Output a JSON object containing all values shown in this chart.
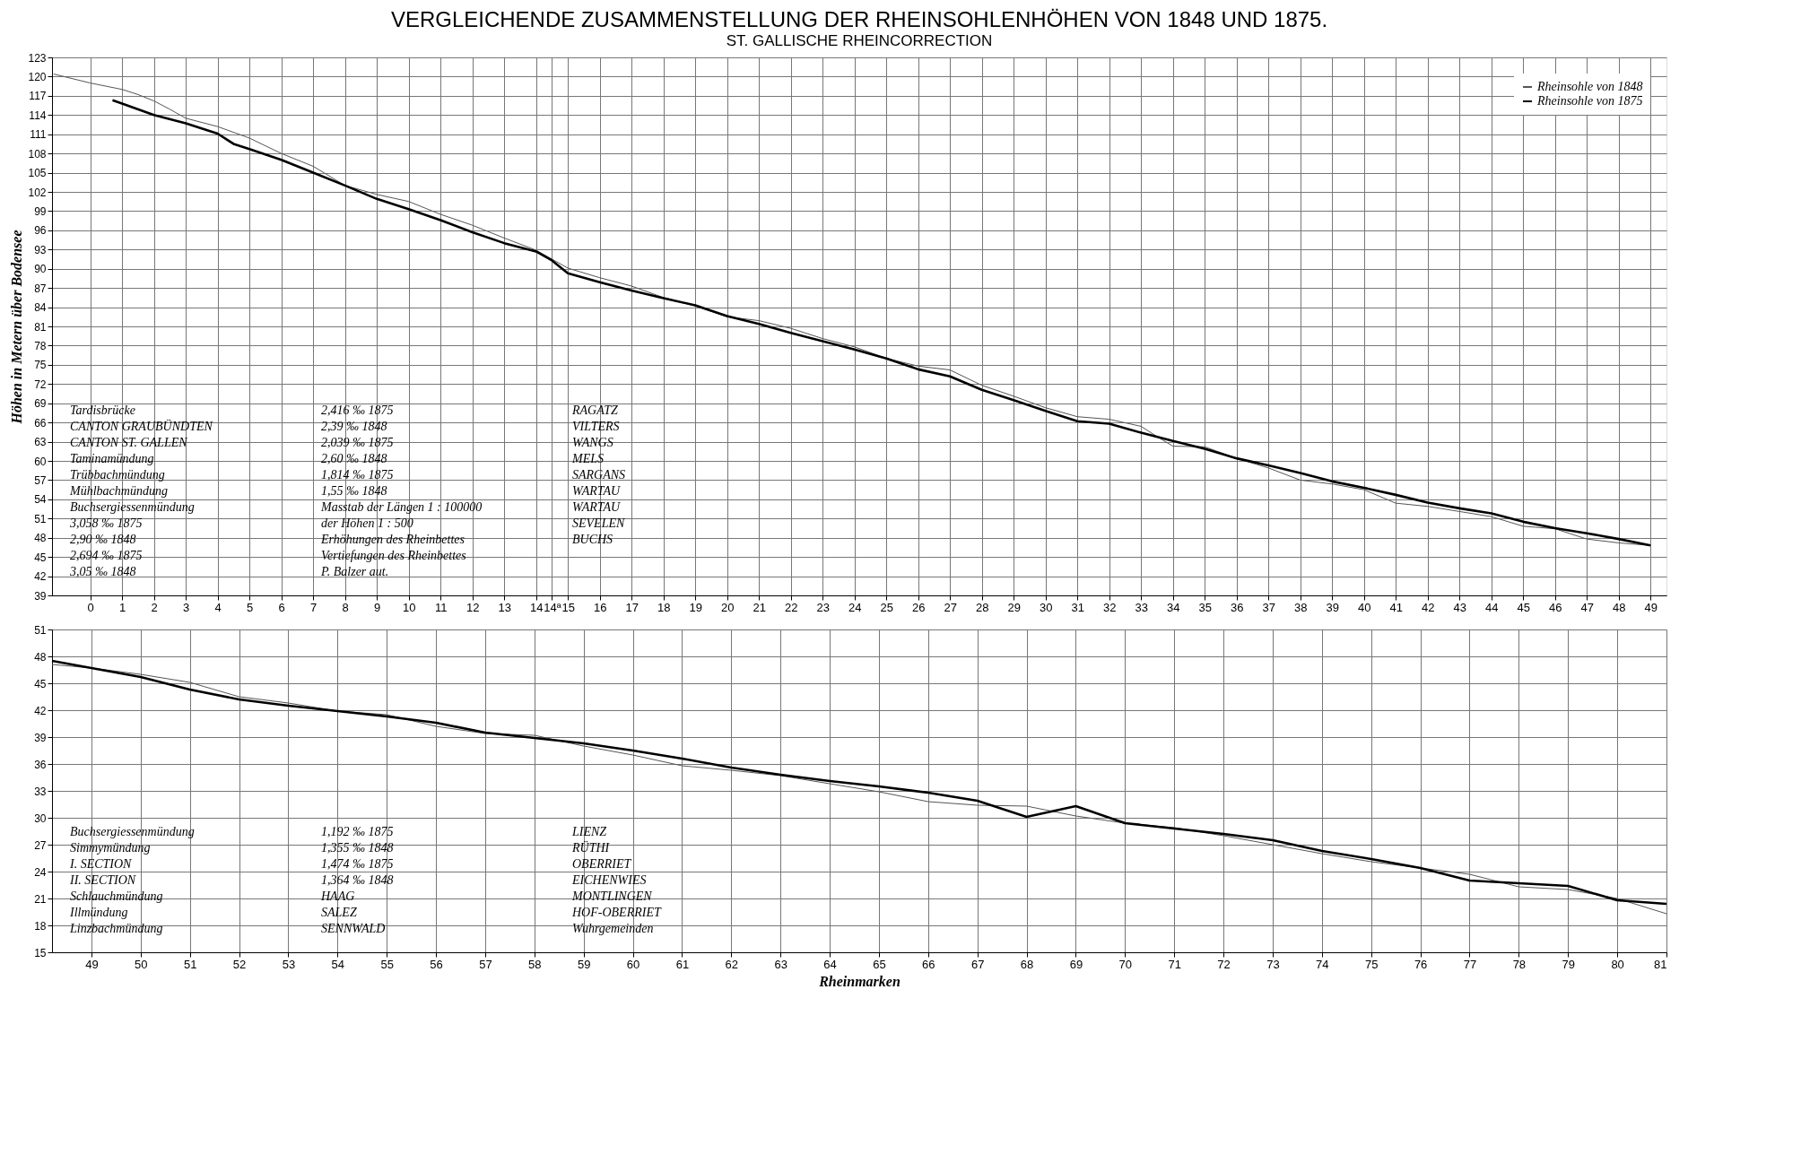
{
  "chart_data": [
    {
      "type": "line",
      "title": "VERGLEICHENDE ZUSAMMENSTELLUNG DER RHEINSOHLENHÖHEN VON 1848 UND 1875.",
      "subtitle": "ST. GALLISCHE RHEINCORRECTION",
      "ylabel": "Höhen in Metern über Bodensee",
      "xlim": [
        -1.2,
        49.5
      ],
      "ylim": [
        39,
        123
      ],
      "xticks": [
        0,
        1,
        2,
        3,
        4,
        5,
        6,
        7,
        8,
        9,
        10,
        11,
        12,
        13,
        14,
        {
          "value": 14.5,
          "label": "14ª"
        },
        15,
        16,
        17,
        18,
        19,
        20,
        21,
        22,
        23,
        24,
        25,
        26,
        27,
        28,
        29,
        30,
        31,
        32,
        33,
        34,
        35,
        36,
        37,
        38,
        39,
        40,
        41,
        42,
        43,
        44,
        45,
        46,
        47,
        48,
        49
      ],
      "yticks": [
        39,
        42,
        45,
        48,
        51,
        54,
        57,
        60,
        63,
        66,
        69,
        72,
        75,
        78,
        81,
        84,
        87,
        90,
        93,
        96,
        99,
        102,
        105,
        108,
        111,
        114,
        117,
        120,
        123
      ],
      "grid": true,
      "legend": "top right",
      "marker": "none",
      "line_style": "solid",
      "series": [
        {
          "name": "Rheinsohle von 1848",
          "color": "#555555",
          "x": [
            -1.15,
            0,
            1,
            1.5,
            2,
            2.5,
            3,
            4,
            5,
            6,
            7,
            8,
            9,
            10,
            11,
            12,
            13,
            14,
            14.5,
            15,
            16,
            17,
            18,
            19,
            20,
            21,
            22,
            23,
            24,
            25,
            26,
            27,
            28,
            29,
            30,
            31,
            32,
            33,
            33.5,
            34,
            35,
            36,
            37,
            38,
            39,
            40,
            41,
            42,
            43,
            44,
            45,
            46,
            47,
            48,
            49
          ],
          "values": [
            120.4,
            119.0,
            118.0,
            117.2,
            116.2,
            114.9,
            113.5,
            112.2,
            110.4,
            108.0,
            106.0,
            103.0,
            101.6,
            100.5,
            98.5,
            96.8,
            94.8,
            92.9,
            91.5,
            90.1,
            88.6,
            87.3,
            85.5,
            84.2,
            82.5,
            81.9,
            80.7,
            79.1,
            77.8,
            76.0,
            74.8,
            74.2,
            71.8,
            70.1,
            68.3,
            66.9,
            66.5,
            65.4,
            63.8,
            62.3,
            62.2,
            60.4,
            58.9,
            57.0,
            56.4,
            55.5,
            53.4,
            52.9,
            52.1,
            51.3,
            49.8,
            49.4,
            47.8,
            47.2,
            46.8
          ]
        },
        {
          "name": "Rheinsohle von 1875",
          "color": "#000000",
          "x": [
            0.7,
            1,
            2,
            3,
            4,
            4.5,
            5,
            6,
            7,
            8,
            9,
            10,
            11,
            12,
            13,
            14,
            14.5,
            15,
            16,
            17,
            18,
            19,
            20,
            21,
            22,
            23,
            24,
            25,
            26,
            27,
            28,
            29,
            30,
            31,
            32,
            33,
            34,
            35,
            36,
            37,
            38,
            39,
            40,
            41,
            42,
            43,
            44,
            45,
            46,
            47,
            48,
            49
          ],
          "values": [
            116.3,
            115.8,
            114.0,
            112.7,
            111.1,
            109.5,
            108.7,
            107.0,
            105.0,
            103.0,
            100.9,
            99.3,
            97.6,
            95.7,
            94.0,
            92.7,
            91.3,
            89.3,
            87.9,
            86.6,
            85.4,
            84.3,
            82.6,
            81.4,
            80.0,
            78.7,
            77.4,
            76.0,
            74.3,
            73.2,
            71.1,
            69.5,
            67.8,
            66.2,
            65.8,
            64.4,
            63.1,
            61.9,
            60.4,
            59.3,
            58.1,
            56.8,
            55.8,
            54.7,
            53.5,
            52.6,
            51.8,
            50.5,
            49.5,
            48.7,
            47.8,
            46.8
          ]
        }
      ],
      "annotations": [
        "Tardisbrücke",
        "CANTON GRAUBÜNDTEN",
        "CANTON ST. GALLEN",
        "Taminamündung",
        "Trübbachmündung",
        "Mühlbachmündung",
        "Buchsergiessenmündung",
        "3,058 ‰ 1875",
        "2,90 ‰ 1848",
        "2,694 ‰ 1875",
        "3,05 ‰ 1848",
        "2,416 ‰ 1875",
        "2,39 ‰ 1848",
        "2,039 ‰ 1875",
        "2,60 ‰ 1848",
        "1,814 ‰ 1875",
        "1,55 ‰ 1848",
        "Masstab der Längen 1 : 100000",
        "der Höhen 1 : 500",
        "Erhöhungen des Rheinbettes",
        "Vertiefungen des Rheinbettes",
        "P. Balzer aut.",
        "RAGATZ",
        "VILTERS",
        "WANGS",
        "MELS",
        "SARGANS",
        "WARTAU",
        "WARTAU",
        "SEVELEN",
        "BUCHS"
      ]
    },
    {
      "type": "line",
      "xlabel": "Rheinmarken",
      "xlim": [
        48.2,
        81
      ],
      "ylim": [
        15,
        51
      ],
      "xticks": [
        49,
        50,
        51,
        52,
        53,
        54,
        55,
        56,
        57,
        58,
        59,
        60,
        61,
        62,
        63,
        64,
        65,
        66,
        67,
        68,
        69,
        70,
        71,
        72,
        73,
        74,
        75,
        76,
        77,
        78,
        79,
        80,
        81
      ],
      "yticks": [
        15,
        18,
        21,
        24,
        27,
        30,
        33,
        36,
        39,
        42,
        45,
        48,
        51
      ],
      "grid": true,
      "marker": "none",
      "line_style": "solid",
      "series": [
        {
          "color": "#555555",
          "x": [
            48.2,
            49,
            50,
            51,
            52,
            53,
            54,
            55,
            56,
            57,
            58,
            59,
            60,
            61,
            62,
            63,
            64,
            65,
            66,
            67,
            68,
            69,
            70,
            71,
            72,
            73,
            74,
            75,
            76,
            77,
            78,
            79,
            80,
            81
          ],
          "values": [
            47.1,
            46.7,
            46.0,
            45.1,
            43.5,
            42.8,
            41.9,
            41.5,
            40.2,
            39.4,
            39.2,
            38.0,
            37.0,
            35.8,
            35.3,
            34.7,
            33.8,
            32.9,
            31.8,
            31.4,
            31.3,
            30.2,
            29.4,
            28.9,
            28.0,
            27.0,
            26.0,
            25.1,
            24.4,
            23.7,
            22.3,
            22.0,
            21.0,
            19.3
          ]
        },
        {
          "color": "#000000",
          "x": [
            48.2,
            49,
            50,
            51,
            52,
            53,
            54,
            55,
            56,
            57,
            58,
            59,
            60,
            61,
            62,
            63,
            64,
            65,
            66,
            67,
            68,
            69,
            70,
            71,
            72,
            73,
            74,
            75,
            76,
            77,
            78,
            79,
            80,
            81
          ],
          "values": [
            47.5,
            46.7,
            45.7,
            44.3,
            43.2,
            42.5,
            41.9,
            41.3,
            40.6,
            39.5,
            38.9,
            38.3,
            37.5,
            36.6,
            35.6,
            34.8,
            34.1,
            33.5,
            32.8,
            31.9,
            30.1,
            31.3,
            29.4,
            28.8,
            28.2,
            27.5,
            26.3,
            25.4,
            24.4,
            23.0,
            22.7,
            22.4,
            20.8,
            20.4
          ]
        }
      ],
      "annotations": [
        "Buchsergiessenmündung",
        "Simmymündung",
        "I. SECTION",
        "II. SECTION",
        "Schlauchmündung",
        "Illmündung",
        "Linzbachmündung",
        "1,192 ‰ 1875",
        "1,355 ‰ 1848",
        "1,474 ‰ 1875",
        "1,364 ‰ 1848",
        "HAAG",
        "SALEZ",
        "SENNWALD",
        "LIENZ",
        "RÜTHI",
        "OBERRIET",
        "EICHENWIES",
        "MONTLINGEN",
        "HOF-OBERRIET",
        "Wuhrgemeinden"
      ]
    }
  ]
}
